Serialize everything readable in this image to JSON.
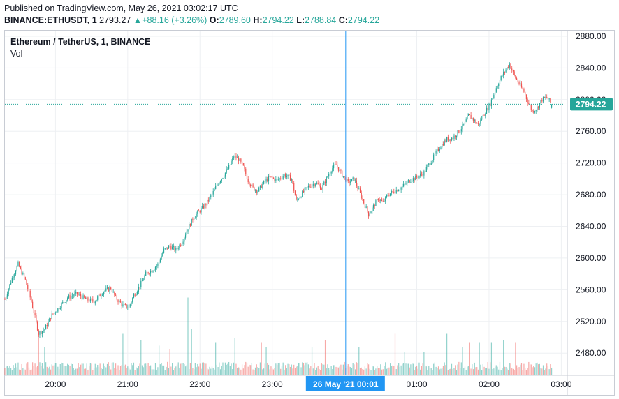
{
  "header": {
    "published": "Published on TradingView.com, May 26, 2021 03:02:17 UTC",
    "symbol": "BINANCE:ETHUSDT, 1",
    "last": "2793.27",
    "change": "+88.16 (+3.26%)",
    "o_label": "O:",
    "o_value": "2789.60",
    "h_label": "H:",
    "h_value": "2794.22",
    "l_label": "L:",
    "l_value": "2788.84",
    "c_label": "C:",
    "c_value": "2794.22"
  },
  "legend": {
    "title": "Ethereum / TetherUS, 1, BINANCE",
    "volume": "Vol"
  },
  "colors": {
    "up": "#26a69a",
    "down": "#ef5350",
    "crosshair": "#2196f3",
    "grid": "#eef0f3"
  },
  "chart_data": {
    "type": "candlestick",
    "title": "Ethereum / TetherUS, 1, BINANCE",
    "x_ticks": [
      "20:00",
      "21:00",
      "22:00",
      "23:00",
      "01:00",
      "02:00",
      "03:00"
    ],
    "y_ticks": [
      "2880.00",
      "2840.00",
      "2800.00",
      "2760.00",
      "2720.00",
      "2680.00",
      "2640.00",
      "2600.00",
      "2560.00",
      "2520.00",
      "2480.00"
    ],
    "ylim": [
      2452,
      2887
    ],
    "xlim_minutes": [
      1158,
      1625
    ],
    "last_price": "2794.22",
    "crosshair_label": "26 May '21   00:01",
    "grid": true,
    "price_anchors": [
      [
        1158,
        2548
      ],
      [
        1164,
        2575
      ],
      [
        1169,
        2592
      ],
      [
        1175,
        2572
      ],
      [
        1180,
        2545
      ],
      [
        1186,
        2505
      ],
      [
        1191,
        2510
      ],
      [
        1197,
        2528
      ],
      [
        1203,
        2538
      ],
      [
        1210,
        2550
      ],
      [
        1218,
        2555
      ],
      [
        1225,
        2548
      ],
      [
        1232,
        2545
      ],
      [
        1240,
        2558
      ],
      [
        1246,
        2562
      ],
      [
        1250,
        2550
      ],
      [
        1256,
        2540
      ],
      [
        1261,
        2538
      ],
      [
        1265,
        2553
      ],
      [
        1270,
        2565
      ],
      [
        1275,
        2580
      ],
      [
        1280,
        2585
      ],
      [
        1285,
        2592
      ],
      [
        1290,
        2610
      ],
      [
        1295,
        2615
      ],
      [
        1300,
        2610
      ],
      [
        1305,
        2620
      ],
      [
        1310,
        2638
      ],
      [
        1315,
        2652
      ],
      [
        1320,
        2660
      ],
      [
        1325,
        2668
      ],
      [
        1330,
        2680
      ],
      [
        1335,
        2695
      ],
      [
        1340,
        2705
      ],
      [
        1345,
        2718
      ],
      [
        1348,
        2728
      ],
      [
        1352,
        2725
      ],
      [
        1356,
        2715
      ],
      [
        1360,
        2698
      ],
      [
        1364,
        2688
      ],
      [
        1368,
        2685
      ],
      [
        1373,
        2695
      ],
      [
        1378,
        2702
      ],
      [
        1384,
        2698
      ],
      [
        1390,
        2705
      ],
      [
        1396,
        2700
      ],
      [
        1400,
        2672
      ],
      [
        1404,
        2680
      ],
      [
        1410,
        2690
      ],
      [
        1416,
        2695
      ],
      [
        1421,
        2688
      ],
      [
        1425,
        2700
      ],
      [
        1429,
        2712
      ],
      [
        1433,
        2718
      ],
      [
        1438,
        2705
      ],
      [
        1443,
        2695
      ],
      [
        1448,
        2700
      ],
      [
        1452,
        2685
      ],
      [
        1456,
        2670
      ],
      [
        1460,
        2655
      ],
      [
        1464,
        2665
      ],
      [
        1468,
        2675
      ],
      [
        1472,
        2670
      ],
      [
        1476,
        2680
      ],
      [
        1482,
        2685
      ],
      [
        1488,
        2690
      ],
      [
        1494,
        2698
      ],
      [
        1500,
        2702
      ],
      [
        1506,
        2708
      ],
      [
        1510,
        2718
      ],
      [
        1515,
        2730
      ],
      [
        1520,
        2742
      ],
      [
        1525,
        2750
      ],
      [
        1530,
        2752
      ],
      [
        1535,
        2760
      ],
      [
        1540,
        2770
      ],
      [
        1543,
        2780
      ],
      [
        1547,
        2775
      ],
      [
        1551,
        2768
      ],
      [
        1556,
        2782
      ],
      [
        1561,
        2795
      ],
      [
        1566,
        2815
      ],
      [
        1570,
        2828
      ],
      [
        1574,
        2838
      ],
      [
        1577,
        2845
      ],
      [
        1581,
        2830
      ],
      [
        1585,
        2820
      ],
      [
        1589,
        2810
      ],
      [
        1592,
        2798
      ],
      [
        1596,
        2785
      ],
      [
        1600,
        2790
      ],
      [
        1604,
        2800
      ],
      [
        1608,
        2803
      ],
      [
        1612,
        2794
      ]
    ],
    "volume_spikes": [
      [
        1186,
        0.45
      ],
      [
        1191,
        0.3
      ],
      [
        1256,
        0.45
      ],
      [
        1271,
        0.38
      ],
      [
        1286,
        0.32
      ],
      [
        1295,
        0.28
      ],
      [
        1310,
        0.85
      ],
      [
        1313,
        0.5
      ],
      [
        1333,
        0.35
      ],
      [
        1349,
        0.4
      ],
      [
        1371,
        0.35
      ],
      [
        1375,
        0.3
      ],
      [
        1413,
        0.3
      ],
      [
        1424,
        0.38
      ],
      [
        1452,
        0.3
      ],
      [
        1482,
        0.45
      ],
      [
        1490,
        0.25
      ],
      [
        1506,
        0.25
      ],
      [
        1525,
        0.45
      ],
      [
        1538,
        0.3
      ],
      [
        1544,
        0.35
      ],
      [
        1552,
        0.35
      ],
      [
        1562,
        0.35
      ],
      [
        1572,
        0.38
      ],
      [
        1582,
        0.35
      ]
    ]
  }
}
